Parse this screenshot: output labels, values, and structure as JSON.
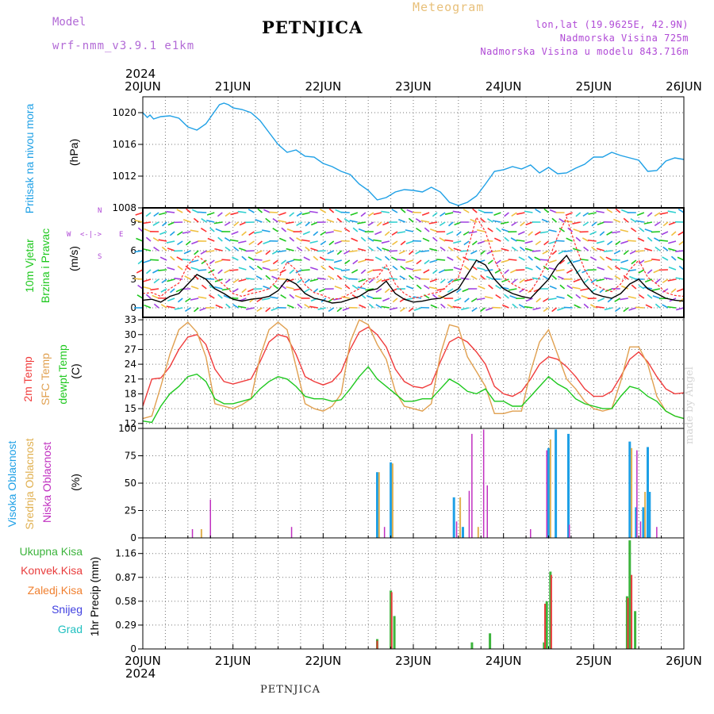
{
  "header": {
    "model_label": "Model",
    "model_name": "wrf-nmm_v3.9.1 e1km",
    "station": "PETNJICA",
    "meteogram_label": "Meteogram",
    "coords": "lon,lat (19.9625E, 42.9N)",
    "elevation": "Nadmorska Visina 725m",
    "model_elevation": "Nadmorska Visina u modelu 843.716m"
  },
  "footer": {
    "station": "PETNJICA",
    "credit": "made by Angel"
  },
  "year": "2024",
  "dates": [
    "20JUN",
    "21JUN",
    "22JUN",
    "23JUN",
    "24JUN",
    "25JUN",
    "26JUN"
  ],
  "colors": {
    "pressure": "#1ea0e6",
    "temp2m": "#f03c3c",
    "sfc": "#e0a050",
    "dewpt": "#1ec81e",
    "high_cloud": "#1ea0e6",
    "mid_cloud": "#e0b050",
    "low_cloud": "#c030c0",
    "total_precip": "#3cb43c",
    "conv_precip": "#e83c3c",
    "frozen_precip": "#f08030",
    "snow": "#4040e0",
    "hail": "#20c0c0",
    "wind_speed": "#000000",
    "gust": "#ff3030"
  },
  "chart_data": [
    {
      "type": "line",
      "title": "",
      "ylabel_lines": [
        "Pritisak na nivou mora",
        "(hPa)"
      ],
      "ylim": [
        1008,
        1022
      ],
      "yticks": [
        1008,
        1012,
        1016,
        1020
      ],
      "grid": true,
      "series": [
        {
          "name": "Pritisak na nivou mora",
          "x": [
            0.0,
            0.05,
            0.08,
            0.12,
            0.2,
            0.3,
            0.4,
            0.5,
            0.6,
            0.7,
            0.8,
            0.85,
            0.9,
            0.95,
            1.0,
            1.1,
            1.2,
            1.3,
            1.4,
            1.5,
            1.6,
            1.7,
            1.8,
            1.9,
            2.0,
            2.1,
            2.2,
            2.3,
            2.4,
            2.5,
            2.6,
            2.7,
            2.8,
            2.9,
            3.0,
            3.1,
            3.2,
            3.3,
            3.4,
            3.5,
            3.6,
            3.7,
            3.8,
            3.9,
            4.0,
            4.1,
            4.2,
            4.3,
            4.4,
            4.5,
            4.6,
            4.7,
            4.8,
            4.9,
            5.0,
            5.1,
            5.2,
            5.3,
            5.4,
            5.5,
            5.6,
            5.7,
            5.8,
            5.9,
            6.0
          ],
          "values": [
            1020.0,
            1019.4,
            1019.7,
            1019.2,
            1019.5,
            1019.6,
            1019.3,
            1018.2,
            1017.8,
            1018.6,
            1020.2,
            1021.0,
            1021.2,
            1021.0,
            1020.6,
            1020.4,
            1020.0,
            1019.0,
            1017.5,
            1016.0,
            1015.0,
            1015.3,
            1014.5,
            1014.4,
            1013.6,
            1013.2,
            1012.6,
            1012.2,
            1011.0,
            1010.2,
            1009.0,
            1009.3,
            1010.0,
            1010.3,
            1010.2,
            1010.0,
            1010.6,
            1010.0,
            1008.7,
            1008.3,
            1008.7,
            1009.5,
            1011.0,
            1012.6,
            1012.8,
            1013.2,
            1012.9,
            1013.4,
            1012.4,
            1013.1,
            1012.3,
            1012.4,
            1013.0,
            1013.5,
            1014.4,
            1014.4,
            1015.0,
            1014.6,
            1014.3,
            1014.0,
            1012.6,
            1012.7,
            1013.9,
            1014.3,
            1014.1
          ]
        }
      ]
    },
    {
      "type": "line",
      "title": "",
      "ylabel_lines": [
        "10m Vjetar",
        "Brzina i Pravac",
        "(m/s)"
      ],
      "compass": [
        "N",
        "E",
        "S",
        "W",
        "<-|->"
      ],
      "ylim": [
        -1,
        10.5
      ],
      "yticks": [
        0,
        3,
        6,
        9
      ],
      "grid": true,
      "barb_levels": [
        0,
        1,
        2,
        3,
        4,
        5,
        6,
        7,
        8,
        9,
        10
      ],
      "series": [
        {
          "name": "Brzina",
          "x": [
            0.0,
            0.1,
            0.2,
            0.3,
            0.4,
            0.5,
            0.6,
            0.7,
            0.8,
            0.9,
            1.0,
            1.1,
            1.2,
            1.3,
            1.4,
            1.5,
            1.6,
            1.7,
            1.8,
            1.9,
            2.0,
            2.1,
            2.2,
            2.3,
            2.4,
            2.5,
            2.6,
            2.7,
            2.8,
            2.9,
            3.0,
            3.1,
            3.2,
            3.3,
            3.4,
            3.5,
            3.6,
            3.7,
            3.8,
            3.9,
            4.0,
            4.1,
            4.2,
            4.3,
            4.4,
            4.5,
            4.6,
            4.7,
            4.8,
            4.9,
            5.0,
            5.1,
            5.2,
            5.3,
            5.4,
            5.5,
            5.6,
            5.7,
            5.8,
            5.9,
            6.0
          ],
          "values": [
            0.8,
            0.9,
            0.6,
            1.2,
            1.5,
            2.5,
            3.5,
            3.0,
            2.0,
            1.5,
            0.9,
            0.7,
            0.9,
            1.0,
            1.2,
            1.8,
            3.0,
            2.5,
            1.5,
            1.0,
            0.8,
            0.5,
            0.6,
            0.9,
            1.2,
            1.8,
            2.0,
            2.8,
            1.5,
            0.9,
            0.6,
            0.7,
            0.9,
            1.0,
            1.5,
            2.0,
            3.5,
            5.0,
            4.5,
            3.0,
            2.0,
            1.5,
            1.2,
            1.0,
            2.0,
            3.0,
            4.5,
            5.5,
            4.0,
            2.5,
            1.5,
            1.2,
            1.0,
            1.5,
            2.5,
            3.0,
            2.0,
            1.5,
            1.0,
            0.8,
            0.7
          ]
        },
        {
          "name": "Udari",
          "x": [
            0.0,
            0.1,
            0.2,
            0.3,
            0.4,
            0.5,
            0.6,
            0.7,
            0.8,
            0.9,
            1.0,
            1.1,
            1.2,
            1.3,
            1.4,
            1.5,
            1.6,
            1.7,
            1.8,
            1.9,
            2.0,
            2.1,
            2.2,
            2.3,
            2.4,
            2.5,
            2.6,
            2.7,
            2.8,
            2.9,
            3.0,
            3.1,
            3.2,
            3.3,
            3.4,
            3.5,
            3.6,
            3.7,
            3.8,
            3.9,
            4.0,
            4.1,
            4.2,
            4.3,
            4.4,
            4.5,
            4.6,
            4.7,
            4.8,
            4.9,
            5.0,
            5.1,
            5.2,
            5.3,
            5.4,
            5.5,
            5.6,
            5.7,
            5.8,
            5.9,
            6.0
          ],
          "values": [
            1.5,
            1.6,
            1.2,
            2.0,
            2.6,
            4.5,
            5.5,
            4.8,
            3.2,
            2.4,
            1.5,
            1.2,
            1.5,
            1.7,
            2.0,
            3.0,
            4.8,
            4.0,
            2.4,
            1.6,
            1.3,
            0.9,
            1.0,
            1.5,
            2.0,
            3.0,
            3.2,
            4.5,
            2.5,
            1.5,
            1.0,
            1.2,
            1.5,
            1.7,
            2.5,
            3.2,
            6.0,
            9.5,
            8.0,
            5.0,
            3.2,
            2.5,
            2.0,
            1.7,
            3.2,
            5.0,
            7.5,
            9.5,
            6.5,
            4.0,
            2.5,
            2.0,
            1.7,
            2.5,
            4.0,
            5.0,
            3.2,
            2.5,
            1.6,
            1.3,
            1.2
          ]
        }
      ]
    },
    {
      "type": "line",
      "title": "",
      "ylabel_lines": [
        "2m Temp",
        "SFC Temp",
        "dewpt Temp",
        "(C)"
      ],
      "ylim": [
        11,
        33.5
      ],
      "yticks": [
        12,
        15,
        18,
        21,
        24,
        27,
        30,
        33
      ],
      "grid": true,
      "series": [
        {
          "name": "2m Temp",
          "x": [
            0.0,
            0.1,
            0.2,
            0.3,
            0.4,
            0.5,
            0.6,
            0.7,
            0.8,
            0.9,
            1.0,
            1.1,
            1.2,
            1.3,
            1.4,
            1.5,
            1.6,
            1.7,
            1.8,
            1.9,
            2.0,
            2.1,
            2.2,
            2.3,
            2.4,
            2.5,
            2.6,
            2.7,
            2.8,
            2.9,
            3.0,
            3.1,
            3.2,
            3.3,
            3.4,
            3.5,
            3.6,
            3.7,
            3.8,
            3.9,
            4.0,
            4.1,
            4.2,
            4.3,
            4.4,
            4.5,
            4.6,
            4.7,
            4.8,
            4.9,
            5.0,
            5.1,
            5.2,
            5.3,
            5.4,
            5.5,
            5.6,
            5.7,
            5.8,
            5.9,
            6.0
          ],
          "values": [
            15.5,
            21.0,
            21.2,
            23.5,
            27.0,
            29.5,
            30.0,
            28.0,
            23.0,
            20.5,
            20.0,
            20.5,
            21.0,
            24.5,
            28.5,
            30.0,
            29.5,
            26.0,
            21.5,
            20.5,
            19.8,
            20.5,
            22.5,
            27.0,
            30.5,
            31.5,
            30.0,
            27.5,
            23.0,
            20.5,
            19.5,
            19.2,
            20.0,
            24.5,
            28.5,
            29.5,
            28.5,
            26.5,
            24.0,
            19.5,
            18.0,
            17.5,
            18.5,
            21.0,
            24.0,
            25.5,
            25.0,
            23.5,
            21.5,
            19.0,
            17.5,
            17.5,
            18.5,
            21.5,
            25.0,
            26.5,
            24.5,
            21.5,
            19.0,
            18.0,
            18.2
          ]
        },
        {
          "name": "SFC Temp",
          "x": [
            0.0,
            0.1,
            0.2,
            0.3,
            0.4,
            0.5,
            0.6,
            0.7,
            0.8,
            0.9,
            1.0,
            1.1,
            1.2,
            1.3,
            1.4,
            1.5,
            1.6,
            1.7,
            1.8,
            1.9,
            2.0,
            2.1,
            2.2,
            2.3,
            2.4,
            2.5,
            2.6,
            2.7,
            2.8,
            2.9,
            3.0,
            3.1,
            3.2,
            3.3,
            3.4,
            3.5,
            3.6,
            3.7,
            3.8,
            3.9,
            4.0,
            4.1,
            4.2,
            4.3,
            4.4,
            4.5,
            4.6,
            4.7,
            4.8,
            4.9,
            5.0,
            5.1,
            5.2,
            5.3,
            5.4,
            5.5,
            5.6,
            5.7,
            5.8,
            5.9,
            6.0
          ],
          "values": [
            13.0,
            13.5,
            19.5,
            26.0,
            31.0,
            32.5,
            30.5,
            25.5,
            16.0,
            15.5,
            15.0,
            15.8,
            17.0,
            25.5,
            31.0,
            32.5,
            31.0,
            23.5,
            16.0,
            15.0,
            14.5,
            15.5,
            18.0,
            28.5,
            33.0,
            32.0,
            28.0,
            25.0,
            18.5,
            15.5,
            15.0,
            14.5,
            16.0,
            26.0,
            32.0,
            31.5,
            25.5,
            22.5,
            19.5,
            14.0,
            14.0,
            14.5,
            14.5,
            22.5,
            28.5,
            31.0,
            26.0,
            21.0,
            19.0,
            16.5,
            15.0,
            14.5,
            15.0,
            20.5,
            27.5,
            27.5,
            24.0,
            17.5,
            14.5,
            13.5,
            13.0
          ]
        },
        {
          "name": "dewpt Temp",
          "x": [
            0.0,
            0.1,
            0.2,
            0.3,
            0.4,
            0.5,
            0.6,
            0.7,
            0.8,
            0.9,
            1.0,
            1.1,
            1.2,
            1.3,
            1.4,
            1.5,
            1.6,
            1.7,
            1.8,
            1.9,
            2.0,
            2.1,
            2.2,
            2.3,
            2.4,
            2.5,
            2.6,
            2.7,
            2.8,
            2.9,
            3.0,
            3.1,
            3.2,
            3.3,
            3.4,
            3.5,
            3.6,
            3.7,
            3.8,
            3.9,
            4.0,
            4.1,
            4.2,
            4.3,
            4.4,
            4.5,
            4.6,
            4.7,
            4.8,
            4.9,
            5.0,
            5.1,
            5.2,
            5.3,
            5.4,
            5.5,
            5.6,
            5.7,
            5.8,
            5.9,
            6.0
          ],
          "values": [
            12.5,
            12.2,
            15.5,
            18.0,
            19.5,
            21.5,
            22.0,
            20.5,
            17.0,
            16.0,
            16.0,
            16.5,
            17.0,
            19.0,
            20.5,
            21.5,
            21.0,
            19.5,
            17.5,
            17.0,
            17.0,
            16.5,
            16.8,
            19.0,
            21.5,
            23.5,
            21.0,
            19.5,
            18.0,
            16.5,
            16.5,
            17.0,
            17.0,
            19.0,
            21.0,
            20.0,
            18.5,
            18.0,
            19.0,
            16.5,
            16.5,
            15.5,
            15.5,
            17.5,
            19.5,
            21.5,
            20.0,
            19.0,
            17.0,
            16.0,
            15.5,
            15.0,
            15.0,
            17.5,
            19.5,
            19.0,
            17.5,
            16.5,
            14.5,
            13.5,
            13.0
          ]
        }
      ]
    },
    {
      "type": "bar",
      "title": "",
      "ylabel_lines": [
        "Visoka Oblacnost",
        "Srednja Oblacnost",
        "Niska Oblacnost",
        "(%)"
      ],
      "ylim": [
        0,
        100
      ],
      "yticks": [
        0,
        25,
        50,
        75,
        100
      ],
      "grid": true,
      "series": [
        {
          "name": "Visoka Oblacnost",
          "x": [
            2.6,
            2.75,
            3.45,
            3.55,
            4.5,
            4.58,
            4.72,
            5.4,
            5.47,
            5.55,
            5.6,
            5.62
          ],
          "values": [
            60,
            69,
            37,
            10,
            82,
            99,
            95,
            88,
            28,
            28,
            83,
            42
          ]
        },
        {
          "name": "Srednja Oblacnost",
          "x": [
            0.65,
            2.62,
            2.77,
            3.52,
            3.72,
            4.52,
            5.42,
            5.57
          ],
          "values": [
            8,
            60,
            68,
            37,
            10,
            90,
            82,
            42
          ]
        },
        {
          "name": "Niska Oblacnost",
          "x": [
            0.55,
            0.75,
            1.65,
            2.68,
            3.48,
            3.62,
            3.65,
            3.78,
            3.82,
            4.3,
            4.48,
            4.73,
            5.48,
            5.52,
            5.7
          ],
          "values": [
            8,
            35,
            10,
            10,
            15,
            43,
            95,
            99,
            48,
            8,
            80,
            12,
            80,
            15,
            10
          ]
        }
      ]
    },
    {
      "type": "bar",
      "title": "",
      "ylabel_lines": [
        "Ukupna Kisa",
        "Konvek.Kisa",
        "Zaledj.Kisa",
        "Snijeg",
        "Grad",
        "1hr Precip (mm)"
      ],
      "ylim": [
        0,
        1.35
      ],
      "yticks": [
        0,
        0.29,
        0.58,
        0.87,
        1.16
      ],
      "grid": true,
      "series": [
        {
          "name": "Ukupna Kisa",
          "x": [
            2.6,
            2.75,
            2.79,
            3.65,
            3.85,
            4.45,
            4.48,
            4.52,
            5.37,
            5.4,
            5.46
          ],
          "values": [
            0.12,
            0.71,
            0.4,
            0.08,
            0.19,
            0.08,
            0.58,
            0.94,
            0.64,
            1.32,
            0.46
          ]
        },
        {
          "name": "Konvek.Kisa",
          "x": [
            2.6,
            2.76,
            4.46,
            4.53,
            5.38,
            5.42
          ],
          "values": [
            0.1,
            0.69,
            0.55,
            0.9,
            0.62,
            0.9
          ]
        }
      ]
    }
  ]
}
